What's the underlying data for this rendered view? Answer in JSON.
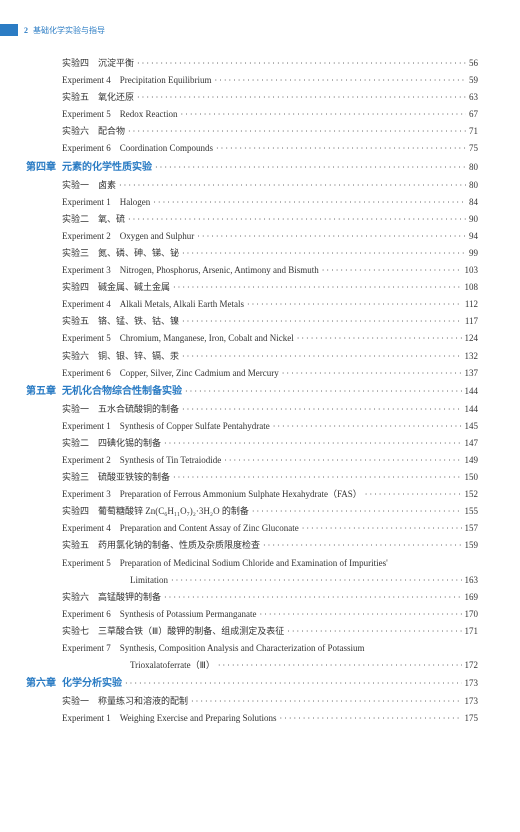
{
  "header": {
    "page_number": "2",
    "book_title": "基础化学实验与指导"
  },
  "dots": "·························································································································································",
  "entries": [
    {
      "type": "item",
      "label": "实验四　沉淀平衡",
      "page": "56"
    },
    {
      "type": "item",
      "label": "Experiment 4　Precipitation Equilibrium",
      "page": "59"
    },
    {
      "type": "item",
      "label": "实验五　氧化还原",
      "page": "63"
    },
    {
      "type": "item",
      "label": "Experiment 5　Redox Reaction",
      "page": "67"
    },
    {
      "type": "item",
      "label": "实验六　配合物",
      "page": "71"
    },
    {
      "type": "item",
      "label": "Experiment 6　Coordination Compounds",
      "page": "75"
    },
    {
      "type": "chapter",
      "chapter": "第四章",
      "label": "元素的化学性质实验",
      "page": "80"
    },
    {
      "type": "item",
      "label": "实验一　卤素",
      "page": "80"
    },
    {
      "type": "item",
      "label": "Experiment 1　Halogen",
      "page": "84"
    },
    {
      "type": "item",
      "label": "实验二　氧、硫",
      "page": "90"
    },
    {
      "type": "item",
      "label": "Experiment 2　Oxygen and Sulphur",
      "page": "94"
    },
    {
      "type": "item",
      "label": "实验三　氮、磷、砷、锑、铋",
      "page": "99"
    },
    {
      "type": "item",
      "label": "Experiment 3　Nitrogen, Phosphorus, Arsenic, Antimony and Bismuth",
      "page": "103"
    },
    {
      "type": "item",
      "label": "实验四　碱金属、碱土金属",
      "page": "108"
    },
    {
      "type": "item",
      "label": "Experiment 4　Alkali Metals, Alkali Earth Metals",
      "page": "112"
    },
    {
      "type": "item",
      "label": "实验五　铬、锰、铁、钴、镍",
      "page": "117"
    },
    {
      "type": "item",
      "label": "Experiment 5　Chromium, Manganese, Iron, Cobalt and Nickel",
      "page": "124"
    },
    {
      "type": "item",
      "label": "实验六　铜、银、锌、镉、汞",
      "page": "132"
    },
    {
      "type": "item",
      "label": "Experiment 6　Copper, Silver, Zinc Cadmium and Mercury",
      "page": "137"
    },
    {
      "type": "chapter",
      "chapter": "第五章",
      "label": "无机化合物综合性制备实验",
      "page": "144"
    },
    {
      "type": "item",
      "label": "实验一　五水合硫酸铜的制备",
      "page": "144"
    },
    {
      "type": "item",
      "label": "Experiment 1　Synthesis of Copper Sulfate Pentahydrate",
      "page": "145"
    },
    {
      "type": "item",
      "label": "实验二　四碘化锡的制备",
      "page": "147"
    },
    {
      "type": "item",
      "label": "Experiment 2　Synthesis of Tin Tetraiodide",
      "page": "149"
    },
    {
      "type": "item",
      "label": "实验三　硫酸亚铁铵的制备",
      "page": "150"
    },
    {
      "type": "item",
      "label": "Experiment 3　Preparation of Ferrous Ammonium Sulphate Hexahydrate（FAS）",
      "page": "152"
    },
    {
      "type": "item",
      "label": "实验四　葡萄糖酸锌 Zn(C₆H₁₁O₇)₂·3H₂O 的制备",
      "page": "155"
    },
    {
      "type": "item",
      "label": "Experiment 4　Preparation and Content Assay of Zinc Gluconate",
      "page": "157"
    },
    {
      "type": "item",
      "label": "实验五　药用氯化钠的制备、性质及杂质限度检查",
      "page": "159"
    },
    {
      "type": "item-noline",
      "label": "Experiment 5　Preparation of Medicinal Sodium Chloride and Examination of Impurities'"
    },
    {
      "type": "item-cont",
      "label": "Limitation",
      "page": "163"
    },
    {
      "type": "item",
      "label": "实验六　高锰酸钾的制备",
      "page": "169"
    },
    {
      "type": "item",
      "label": "Experiment 6　Synthesis of Potassium Permanganate",
      "page": "170"
    },
    {
      "type": "item",
      "label": "实验七　三草酸合铁（Ⅲ）酸钾的制备、组成测定及表征",
      "page": "171"
    },
    {
      "type": "item-noline",
      "label": "Experiment 7　Synthesis, Composition Analysis and Characterization of Potassium"
    },
    {
      "type": "item-cont",
      "label": "Trioxalatoferrate（Ⅲ）",
      "page": "172"
    },
    {
      "type": "chapter",
      "chapter": "第六章",
      "label": "化学分析实验",
      "page": "173"
    },
    {
      "type": "item",
      "label": "实验一　称量练习和溶液的配制",
      "page": "173"
    },
    {
      "type": "item",
      "label": "Experiment 1　Weighing Exercise and Preparing Solutions",
      "page": "175"
    }
  ]
}
